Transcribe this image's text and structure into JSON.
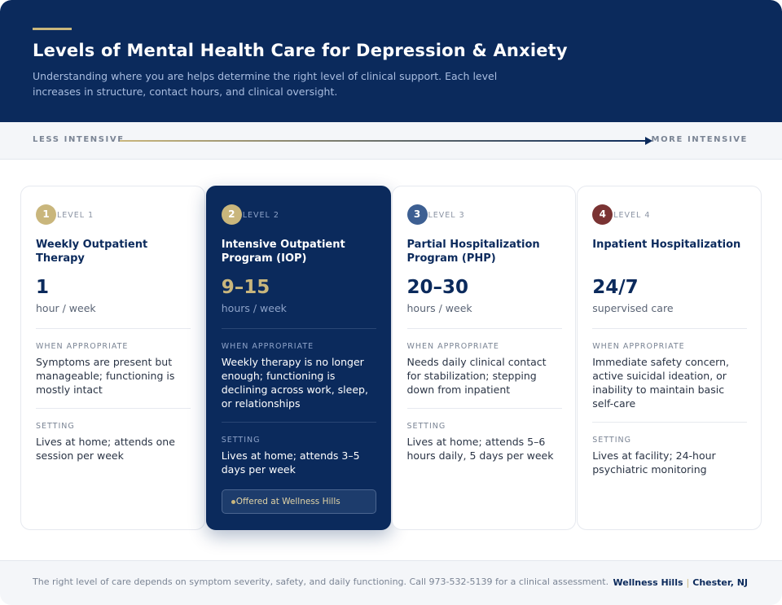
{
  "header": {
    "title": "Levels of Mental Health Care for Depression & Anxiety",
    "subtitle": "Understanding where you are helps determine the right level of clinical support. Each level increases in structure, contact hours, and clinical oversight."
  },
  "scale": {
    "start": "LESS INTENSIVE",
    "end": "MORE INTENSIVE"
  },
  "levels": [
    {
      "number": "1",
      "level": "LEVEL 1",
      "name": "Weekly Outpatient Therapy",
      "amount": "1",
      "unit": "hour / week",
      "when_label": "WHEN APPROPRIATE",
      "when": "Symptoms are present but manageable; functioning is mostly intact",
      "setting_label": "SETTING",
      "setting": "Lives at home; attends one session per week"
    },
    {
      "number": "2",
      "level": "LEVEL 2",
      "name": "Intensive Outpatient Program (IOP)",
      "amount": "9–15",
      "unit": "hours / week",
      "when_label": "WHEN APPROPRIATE",
      "when": "Weekly therapy is no longer enough; functioning is declining across work, sleep, or relationships",
      "setting_label": "SETTING",
      "setting": "Lives at home; attends 3–5 days per week",
      "badge": "Offered at Wellness Hills"
    },
    {
      "number": "3",
      "level": "LEVEL 3",
      "name": "Partial Hospitalization Program (PHP)",
      "amount": "20–30",
      "unit": "hours / week",
      "when_label": "WHEN APPROPRIATE",
      "when": "Needs daily clinical contact for stabilization; stepping down from inpatient",
      "setting_label": "SETTING",
      "setting": "Lives at home; attends 5–6 hours daily, 5 days per week"
    },
    {
      "number": "4",
      "level": "LEVEL 4",
      "name": "Inpatient Hospitalization",
      "amount": "24/7",
      "unit": "supervised care",
      "when_label": "WHEN APPROPRIATE",
      "when": "Immediate safety concern, active suicidal ideation, or inability to maintain basic self-care",
      "setting_label": "SETTING",
      "setting": "Lives at facility; 24-hour psychiatric monitoring"
    }
  ],
  "footer": {
    "note": "The right level of care depends on symptom severity, safety, and daily functioning. Call 973-532-5139 for a clinical assessment.",
    "brand": "Wellness Hills",
    "separator": "|",
    "location": "Chester, NJ"
  }
}
